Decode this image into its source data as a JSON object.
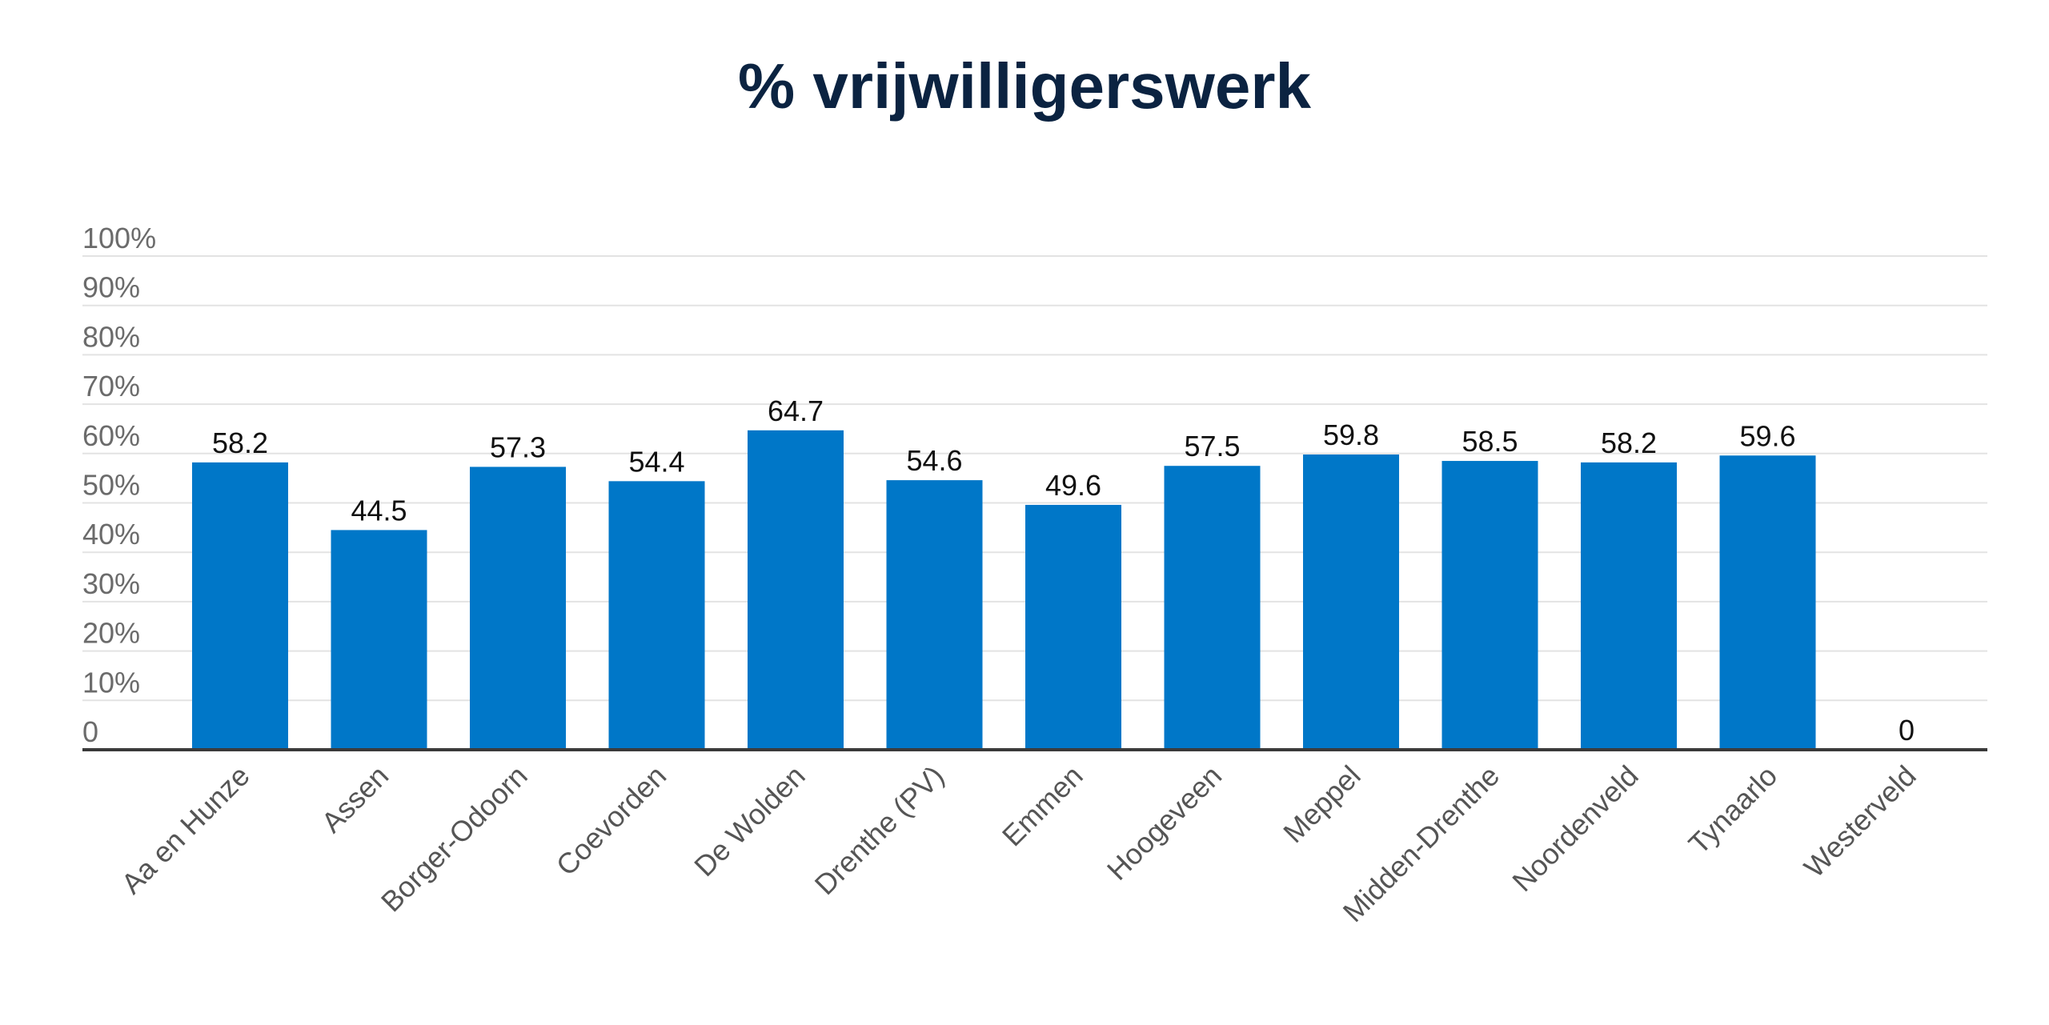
{
  "chart_data": {
    "type": "bar",
    "title": "% vrijwilligerswerk",
    "xlabel": "",
    "ylabel": "",
    "ylim": [
      0,
      100
    ],
    "y_ticks": [
      {
        "value": 0,
        "label": "0"
      },
      {
        "value": 10,
        "label": "10%"
      },
      {
        "value": 20,
        "label": "20%"
      },
      {
        "value": 30,
        "label": "30%"
      },
      {
        "value": 40,
        "label": "40%"
      },
      {
        "value": 50,
        "label": "50%"
      },
      {
        "value": 60,
        "label": "60%"
      },
      {
        "value": 70,
        "label": "70%"
      },
      {
        "value": 80,
        "label": "80%"
      },
      {
        "value": 90,
        "label": "90%"
      },
      {
        "value": 100,
        "label": "100%"
      }
    ],
    "categories": [
      "Aa en Hunze",
      "Assen",
      "Borger-Odoorn",
      "Coevorden",
      "De Wolden",
      "Drenthe (PV)",
      "Emmen",
      "Hoogeveen",
      "Meppel",
      "Midden-Drenthe",
      "Noordenveld",
      "Tynaarlo",
      "Westerveld"
    ],
    "values": [
      58.2,
      44.5,
      57.3,
      54.4,
      64.7,
      54.6,
      49.6,
      57.5,
      59.8,
      58.5,
      58.2,
      59.6,
      0
    ],
    "value_labels": [
      "58.2",
      "44.5",
      "57.3",
      "54.4",
      "64.7",
      "54.6",
      "49.6",
      "57.5",
      "59.8",
      "58.5",
      "58.2",
      "59.6",
      "0"
    ],
    "grid": true,
    "legend": "none",
    "colors": {
      "bar": "#0077c8",
      "title": "#0b2341"
    }
  }
}
